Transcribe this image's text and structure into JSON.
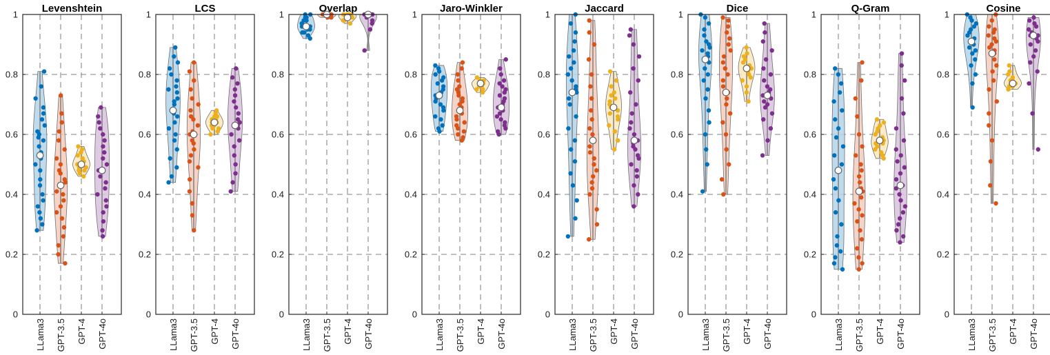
{
  "chart_data": {
    "type": "violin",
    "colors": {
      "LLama3": "#0072BD",
      "GPT-3.5": "#D95319",
      "GPT-4": "#EDB120",
      "GPT-4o": "#7E2F8E"
    },
    "shared": {
      "categories": [
        "LLama3",
        "GPT-3.5",
        "GPT-4",
        "GPT-4o"
      ],
      "ylim": [
        0,
        1
      ],
      "yticks": [
        "0",
        "0.2",
        "0.4",
        "0.6",
        "0.8",
        "1"
      ],
      "grid": "dashed"
    },
    "panels": [
      {
        "title": "Levenshtein",
        "series": [
          {
            "name": "LLama3",
            "min": 0.28,
            "max": 0.81,
            "median": 0.53,
            "values": [
              0.28,
              0.3,
              0.32,
              0.34,
              0.36,
              0.38,
              0.4,
              0.43,
              0.45,
              0.48,
              0.5,
              0.52,
              0.54,
              0.56,
              0.58,
              0.59,
              0.6,
              0.61,
              0.63,
              0.65,
              0.67,
              0.69,
              0.72,
              0.76,
              0.81
            ]
          },
          {
            "name": "GPT-3.5",
            "min": 0.17,
            "max": 0.73,
            "median": 0.43,
            "values": [
              0.17,
              0.2,
              0.23,
              0.26,
              0.29,
              0.32,
              0.34,
              0.36,
              0.38,
              0.4,
              0.41,
              0.43,
              0.44,
              0.45,
              0.47,
              0.48,
              0.5,
              0.52,
              0.55,
              0.58,
              0.61,
              0.64,
              0.67,
              0.73
            ]
          },
          {
            "name": "GPT-4",
            "min": 0.46,
            "max": 0.56,
            "median": 0.5,
            "values": [
              0.46,
              0.47,
              0.48,
              0.48,
              0.49,
              0.49,
              0.5,
              0.5,
              0.5,
              0.51,
              0.51,
              0.52,
              0.52,
              0.53,
              0.54,
              0.55,
              0.56
            ]
          },
          {
            "name": "GPT-4o",
            "min": 0.26,
            "max": 0.69,
            "median": 0.48,
            "values": [
              0.26,
              0.28,
              0.31,
              0.34,
              0.36,
              0.38,
              0.4,
              0.42,
              0.44,
              0.46,
              0.48,
              0.5,
              0.52,
              0.54,
              0.56,
              0.58,
              0.6,
              0.62,
              0.64,
              0.66,
              0.69
            ]
          }
        ]
      },
      {
        "title": "LCS",
        "series": [
          {
            "name": "LLama3",
            "min": 0.44,
            "max": 0.89,
            "median": 0.68,
            "values": [
              0.44,
              0.46,
              0.49,
              0.52,
              0.55,
              0.58,
              0.6,
              0.62,
              0.64,
              0.66,
              0.67,
              0.68,
              0.7,
              0.71,
              0.72,
              0.74,
              0.75,
              0.76,
              0.78,
              0.8,
              0.82,
              0.84,
              0.86,
              0.89
            ]
          },
          {
            "name": "GPT-3.5",
            "min": 0.28,
            "max": 0.84,
            "median": 0.6,
            "values": [
              0.28,
              0.33,
              0.37,
              0.41,
              0.45,
              0.49,
              0.51,
              0.53,
              0.55,
              0.57,
              0.58,
              0.6,
              0.61,
              0.63,
              0.65,
              0.66,
              0.68,
              0.7,
              0.72,
              0.75,
              0.78,
              0.81,
              0.84
            ]
          },
          {
            "name": "GPT-4",
            "min": 0.6,
            "max": 0.68,
            "median": 0.64,
            "values": [
              0.6,
              0.61,
              0.62,
              0.62,
              0.63,
              0.63,
              0.64,
              0.64,
              0.64,
              0.65,
              0.65,
              0.66,
              0.66,
              0.67,
              0.68
            ]
          },
          {
            "name": "GPT-4o",
            "min": 0.41,
            "max": 0.82,
            "median": 0.63,
            "values": [
              0.41,
              0.44,
              0.47,
              0.5,
              0.53,
              0.56,
              0.58,
              0.6,
              0.62,
              0.63,
              0.64,
              0.65,
              0.67,
              0.69,
              0.71,
              0.73,
              0.75,
              0.77,
              0.79,
              0.82
            ]
          }
        ]
      },
      {
        "title": "Overlap",
        "series": [
          {
            "name": "LLama3",
            "min": 0.92,
            "max": 1.0,
            "median": 0.96,
            "values": [
              0.92,
              0.93,
              0.94,
              0.94,
              0.95,
              0.95,
              0.96,
              0.96,
              0.96,
              0.97,
              0.97,
              0.98,
              0.98,
              0.99,
              0.99,
              1.0,
              1.0
            ]
          },
          {
            "name": "GPT-3.5",
            "min": 0.99,
            "max": 1.0,
            "median": 1.0,
            "values": [
              0.99,
              0.99,
              1.0,
              1.0,
              1.0,
              1.0,
              1.0,
              1.0
            ]
          },
          {
            "name": "GPT-4",
            "min": 0.97,
            "max": 1.0,
            "median": 0.99,
            "values": [
              0.97,
              0.98,
              0.98,
              0.99,
              0.99,
              0.99,
              1.0,
              1.0,
              1.0,
              1.0
            ]
          },
          {
            "name": "GPT-4o",
            "min": 0.88,
            "max": 1.0,
            "median": 1.0,
            "values": [
              0.88,
              0.95,
              0.97,
              0.98,
              0.99,
              1.0,
              1.0,
              1.0,
              1.0
            ]
          }
        ]
      },
      {
        "title": "Jaro-Winkler",
        "series": [
          {
            "name": "LLama3",
            "min": 0.61,
            "max": 0.83,
            "median": 0.73,
            "values": [
              0.61,
              0.62,
              0.63,
              0.65,
              0.66,
              0.68,
              0.69,
              0.7,
              0.71,
              0.72,
              0.73,
              0.74,
              0.75,
              0.76,
              0.77,
              0.78,
              0.79,
              0.8,
              0.81,
              0.82,
              0.83
            ]
          },
          {
            "name": "GPT-3.5",
            "min": 0.58,
            "max": 0.84,
            "median": 0.68,
            "values": [
              0.58,
              0.59,
              0.6,
              0.61,
              0.62,
              0.63,
              0.64,
              0.65,
              0.66,
              0.67,
              0.68,
              0.69,
              0.7,
              0.71,
              0.72,
              0.73,
              0.74,
              0.75,
              0.76,
              0.78,
              0.8,
              0.82,
              0.84
            ]
          },
          {
            "name": "GPT-4",
            "min": 0.74,
            "max": 0.79,
            "median": 0.77,
            "values": [
              0.74,
              0.75,
              0.75,
              0.76,
              0.76,
              0.77,
              0.77,
              0.77,
              0.78,
              0.78,
              0.79
            ]
          },
          {
            "name": "GPT-4o",
            "min": 0.6,
            "max": 0.85,
            "median": 0.69,
            "values": [
              0.6,
              0.61,
              0.62,
              0.63,
              0.64,
              0.65,
              0.66,
              0.67,
              0.68,
              0.69,
              0.7,
              0.71,
              0.72,
              0.73,
              0.74,
              0.75,
              0.76,
              0.77,
              0.78,
              0.8,
              0.82,
              0.85
            ]
          }
        ]
      },
      {
        "title": "Jaccard",
        "series": [
          {
            "name": "LLama3",
            "min": 0.26,
            "max": 1.0,
            "median": 0.74,
            "values": [
              0.26,
              0.32,
              0.38,
              0.43,
              0.47,
              0.51,
              0.55,
              0.58,
              0.62,
              0.66,
              0.7,
              0.72,
              0.74,
              0.75,
              0.76,
              0.78,
              0.8,
              0.82,
              0.84,
              0.86,
              0.88,
              0.91,
              0.94,
              0.97,
              1.0
            ]
          },
          {
            "name": "GPT-3.5",
            "min": 0.25,
            "max": 0.98,
            "median": 0.58,
            "values": [
              0.25,
              0.3,
              0.35,
              0.4,
              0.42,
              0.44,
              0.46,
              0.48,
              0.5,
              0.52,
              0.54,
              0.56,
              0.58,
              0.6,
              0.62,
              0.65,
              0.68,
              0.72,
              0.76,
              0.8,
              0.85,
              0.9,
              0.94,
              0.98
            ]
          },
          {
            "name": "GPT-4",
            "min": 0.55,
            "max": 0.81,
            "median": 0.69,
            "values": [
              0.55,
              0.58,
              0.61,
              0.63,
              0.65,
              0.66,
              0.67,
              0.68,
              0.69,
              0.7,
              0.71,
              0.72,
              0.73,
              0.74,
              0.76,
              0.78,
              0.81
            ]
          },
          {
            "name": "GPT-4o",
            "min": 0.36,
            "max": 0.95,
            "median": 0.58,
            "values": [
              0.36,
              0.4,
              0.43,
              0.46,
              0.48,
              0.5,
              0.52,
              0.53,
              0.55,
              0.56,
              0.57,
              0.58,
              0.6,
              0.62,
              0.64,
              0.67,
              0.7,
              0.74,
              0.78,
              0.82,
              0.86,
              0.9,
              0.93,
              0.95
            ]
          }
        ]
      },
      {
        "title": "Dice",
        "series": [
          {
            "name": "LLama3",
            "min": 0.41,
            "max": 1.0,
            "median": 0.85,
            "values": [
              0.41,
              0.5,
              0.55,
              0.6,
              0.64,
              0.68,
              0.72,
              0.75,
              0.78,
              0.8,
              0.82,
              0.84,
              0.85,
              0.86,
              0.87,
              0.88,
              0.89,
              0.9,
              0.91,
              0.93,
              0.95,
              0.97,
              0.99,
              1.0
            ]
          },
          {
            "name": "GPT-3.5",
            "min": 0.4,
            "max": 0.99,
            "median": 0.74,
            "values": [
              0.4,
              0.45,
              0.5,
              0.55,
              0.6,
              0.64,
              0.67,
              0.7,
              0.72,
              0.74,
              0.76,
              0.78,
              0.8,
              0.82,
              0.84,
              0.86,
              0.88,
              0.9,
              0.92,
              0.94,
              0.96,
              0.98,
              0.99
            ]
          },
          {
            "name": "GPT-4",
            "min": 0.71,
            "max": 0.89,
            "median": 0.82,
            "values": [
              0.71,
              0.74,
              0.76,
              0.78,
              0.79,
              0.8,
              0.81,
              0.82,
              0.82,
              0.83,
              0.84,
              0.85,
              0.86,
              0.87,
              0.89
            ]
          },
          {
            "name": "GPT-4o",
            "min": 0.53,
            "max": 0.97,
            "median": 0.73,
            "values": [
              0.53,
              0.58,
              0.62,
              0.65,
              0.67,
              0.69,
              0.7,
              0.71,
              0.72,
              0.73,
              0.74,
              0.75,
              0.76,
              0.78,
              0.8,
              0.82,
              0.85,
              0.88,
              0.91,
              0.94,
              0.97
            ]
          }
        ]
      },
      {
        "title": "Q-Gram",
        "series": [
          {
            "name": "LLama3",
            "min": 0.15,
            "max": 0.82,
            "median": 0.48,
            "values": [
              0.15,
              0.17,
              0.19,
              0.21,
              0.23,
              0.26,
              0.3,
              0.34,
              0.38,
              0.42,
              0.45,
              0.48,
              0.5,
              0.53,
              0.56,
              0.59,
              0.62,
              0.65,
              0.68,
              0.71,
              0.74,
              0.77,
              0.8,
              0.82
            ]
          },
          {
            "name": "GPT-3.5",
            "min": 0.15,
            "max": 0.84,
            "median": 0.41,
            "values": [
              0.15,
              0.17,
              0.19,
              0.22,
              0.25,
              0.28,
              0.31,
              0.33,
              0.35,
              0.37,
              0.39,
              0.41,
              0.42,
              0.44,
              0.46,
              0.48,
              0.5,
              0.53,
              0.56,
              0.6,
              0.66,
              0.72,
              0.78,
              0.84
            ]
          },
          {
            "name": "GPT-4",
            "min": 0.52,
            "max": 0.65,
            "median": 0.58,
            "values": [
              0.52,
              0.53,
              0.54,
              0.55,
              0.56,
              0.57,
              0.57,
              0.58,
              0.58,
              0.59,
              0.6,
              0.61,
              0.62,
              0.63,
              0.64,
              0.65
            ]
          },
          {
            "name": "GPT-4o",
            "min": 0.24,
            "max": 0.87,
            "median": 0.43,
            "values": [
              0.24,
              0.26,
              0.28,
              0.3,
              0.32,
              0.34,
              0.36,
              0.38,
              0.4,
              0.42,
              0.43,
              0.45,
              0.47,
              0.49,
              0.51,
              0.53,
              0.55,
              0.58,
              0.62,
              0.67,
              0.72,
              0.78,
              0.83,
              0.87
            ]
          }
        ]
      },
      {
        "title": "Cosine",
        "series": [
          {
            "name": "LLama3",
            "min": 0.69,
            "max": 1.0,
            "median": 0.91,
            "values": [
              0.69,
              0.77,
              0.8,
              0.83,
              0.85,
              0.87,
              0.88,
              0.89,
              0.9,
              0.91,
              0.91,
              0.92,
              0.93,
              0.94,
              0.95,
              0.96,
              0.97,
              0.98,
              0.99,
              1.0
            ]
          },
          {
            "name": "GPT-3.5",
            "min": 0.37,
            "max": 1.0,
            "median": 0.87,
            "values": [
              0.37,
              0.43,
              0.51,
              0.58,
              0.63,
              0.67,
              0.71,
              0.75,
              0.78,
              0.81,
              0.83,
              0.85,
              0.87,
              0.88,
              0.89,
              0.9,
              0.91,
              0.92,
              0.93,
              0.94,
              0.95,
              0.96,
              0.98,
              1.0
            ]
          },
          {
            "name": "GPT-4",
            "min": 0.75,
            "max": 0.83,
            "median": 0.77,
            "values": [
              0.75,
              0.76,
              0.76,
              0.77,
              0.77,
              0.77,
              0.78,
              0.78,
              0.79,
              0.8,
              0.81,
              0.83
            ]
          },
          {
            "name": "GPT-4o",
            "min": 0.55,
            "max": 0.99,
            "median": 0.93,
            "values": [
              0.55,
              0.67,
              0.77,
              0.81,
              0.84,
              0.86,
              0.88,
              0.9,
              0.91,
              0.92,
              0.93,
              0.93,
              0.94,
              0.95,
              0.96,
              0.97,
              0.98,
              0.99
            ]
          }
        ]
      }
    ]
  }
}
